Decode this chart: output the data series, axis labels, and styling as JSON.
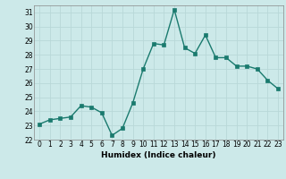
{
  "x": [
    0,
    1,
    2,
    3,
    4,
    5,
    6,
    7,
    8,
    9,
    10,
    11,
    12,
    13,
    14,
    15,
    16,
    17,
    18,
    19,
    20,
    21,
    22,
    23
  ],
  "y": [
    23.1,
    23.4,
    23.5,
    23.6,
    24.4,
    24.3,
    23.9,
    22.3,
    22.8,
    24.6,
    27.0,
    28.8,
    28.7,
    31.2,
    28.5,
    28.1,
    29.4,
    27.8,
    27.8,
    27.2,
    27.2,
    27.0,
    26.2,
    25.6
  ],
  "line_color": "#1a7a6e",
  "marker": "s",
  "markersize": 2.5,
  "linewidth": 1.0,
  "bg_color": "#cce9e9",
  "grid_color": "#b8d8d8",
  "xlabel": "Humidex (Indice chaleur)",
  "ylim": [
    22,
    31.5
  ],
  "xlim": [
    -0.5,
    23.5
  ],
  "yticks": [
    22,
    23,
    24,
    25,
    26,
    27,
    28,
    29,
    30,
    31
  ],
  "xticks": [
    0,
    1,
    2,
    3,
    4,
    5,
    6,
    7,
    8,
    9,
    10,
    11,
    12,
    13,
    14,
    15,
    16,
    17,
    18,
    19,
    20,
    21,
    22,
    23
  ],
  "tick_fontsize": 5.5,
  "label_fontsize": 6.5,
  "grid_linewidth": 0.6
}
